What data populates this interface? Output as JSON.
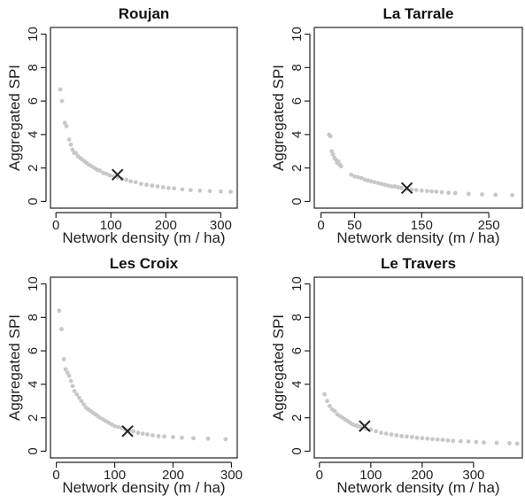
{
  "chart_data": [
    {
      "type": "scatter",
      "title": "Roujan",
      "xlabel": "Network density (m / ha)",
      "ylabel": "Aggregated SPI",
      "xlim": [
        -10,
        330
      ],
      "ylim": [
        -0.4,
        10.4
      ],
      "x_ticks": [
        0,
        100,
        200,
        300
      ],
      "y_ticks": [
        0,
        2,
        4,
        6,
        8,
        10
      ],
      "series": [
        {
          "x": [
            8,
            11,
            16,
            19,
            24,
            27,
            30,
            33,
            36,
            40,
            44,
            48,
            52,
            56,
            60,
            65,
            70,
            75,
            80,
            86,
            92,
            98,
            105,
            112,
            120,
            128,
            136,
            145,
            155,
            165,
            175,
            185,
            195,
            205,
            215,
            230,
            245,
            262,
            280,
            300,
            318
          ],
          "y": [
            6.7,
            6.0,
            4.7,
            4.5,
            3.7,
            3.4,
            3.1,
            2.9,
            2.9,
            2.7,
            2.6,
            2.5,
            2.4,
            2.3,
            2.2,
            2.1,
            2.0,
            1.9,
            1.85,
            1.7,
            1.65,
            1.55,
            1.5,
            1.45,
            1.35,
            1.3,
            1.2,
            1.15,
            1.05,
            1.0,
            0.95,
            0.9,
            0.85,
            0.8,
            0.78,
            0.72,
            0.68,
            0.65,
            0.62,
            0.6,
            0.58
          ]
        }
      ],
      "highlight": {
        "x": 112,
        "y": 1.6,
        "marker": "x"
      }
    },
    {
      "type": "scatter",
      "title": "La Tarrale",
      "xlabel": "Network density (m / ha)",
      "ylabel": "Aggregated SPI",
      "xlim": [
        -10,
        300
      ],
      "ylim": [
        -0.4,
        10.4
      ],
      "x_ticks": [
        0,
        50,
        150,
        250
      ],
      "y_ticks": [
        0,
        2,
        4,
        6,
        8,
        10
      ],
      "series": [
        {
          "x": [
            12,
            14,
            16,
            18,
            20,
            22,
            24,
            26,
            28,
            30,
            45,
            50,
            55,
            60,
            65,
            70,
            75,
            80,
            85,
            90,
            95,
            100,
            105,
            110,
            115,
            120,
            128,
            135,
            142,
            150,
            158,
            165,
            172,
            180,
            190,
            200,
            220,
            240,
            260,
            285
          ],
          "y": [
            4.0,
            3.9,
            3.0,
            2.8,
            2.6,
            2.5,
            2.3,
            2.4,
            2.2,
            2.1,
            1.6,
            1.5,
            1.45,
            1.4,
            1.3,
            1.25,
            1.2,
            1.15,
            1.1,
            1.05,
            1.0,
            0.95,
            0.9,
            0.9,
            0.85,
            0.8,
            0.75,
            0.7,
            0.68,
            0.65,
            0.62,
            0.6,
            0.58,
            0.55,
            0.52,
            0.5,
            0.45,
            0.42,
            0.4,
            0.38
          ]
        }
      ],
      "highlight": {
        "x": 128,
        "y": 0.8,
        "marker": "x"
      }
    },
    {
      "type": "scatter",
      "title": "Les Croix",
      "xlabel": "Network density (m / ha)",
      "ylabel": "Aggregated SPI",
      "xlim": [
        -10,
        310
      ],
      "ylim": [
        -0.4,
        10.4
      ],
      "x_ticks": [
        0,
        100,
        200,
        300
      ],
      "y_ticks": [
        0,
        2,
        4,
        6,
        8,
        10
      ],
      "series": [
        {
          "x": [
            5,
            9,
            13,
            16,
            19,
            22,
            25,
            28,
            31,
            35,
            39,
            43,
            47,
            51,
            55,
            59,
            63,
            67,
            71,
            75,
            80,
            85,
            90,
            95,
            100,
            106,
            112,
            118,
            125,
            132,
            140,
            148,
            156,
            165,
            175,
            185,
            200,
            215,
            235,
            260,
            290
          ],
          "y": [
            8.4,
            7.3,
            5.5,
            4.9,
            4.7,
            4.5,
            4.2,
            3.9,
            3.6,
            3.4,
            3.2,
            3.0,
            2.8,
            2.6,
            2.5,
            2.4,
            2.3,
            2.2,
            2.1,
            2.0,
            1.9,
            1.8,
            1.7,
            1.6,
            1.5,
            1.45,
            1.4,
            1.3,
            1.25,
            1.2,
            1.1,
            1.05,
            1.0,
            0.95,
            0.9,
            0.88,
            0.85,
            0.8,
            0.78,
            0.75,
            0.72
          ]
        }
      ],
      "highlight": {
        "x": 122,
        "y": 1.2,
        "marker": "x"
      }
    },
    {
      "type": "scatter",
      "title": "Le Travers",
      "xlabel": "Network density (m / ha)",
      "ylabel": "Aggregated SPI",
      "xlim": [
        -10,
        395
      ],
      "ylim": [
        -0.4,
        10.4
      ],
      "x_ticks": [
        0,
        100,
        200,
        300
      ],
      "y_ticks": [
        0,
        2,
        4,
        6,
        8,
        10
      ],
      "series": [
        {
          "x": [
            10,
            15,
            20,
            25,
            30,
            35,
            40,
            45,
            50,
            55,
            60,
            65,
            70,
            75,
            80,
            90,
            100,
            110,
            120,
            130,
            140,
            150,
            160,
            170,
            180,
            190,
            200,
            210,
            220,
            230,
            240,
            250,
            260,
            275,
            290,
            305,
            320,
            345,
            370,
            385
          ],
          "y": [
            3.4,
            3.0,
            2.7,
            2.5,
            2.4,
            2.2,
            2.1,
            2.0,
            1.9,
            1.8,
            1.7,
            1.6,
            1.55,
            1.5,
            1.45,
            1.35,
            1.3,
            1.2,
            1.1,
            1.05,
            1.0,
            0.95,
            0.9,
            0.88,
            0.85,
            0.8,
            0.78,
            0.75,
            0.72,
            0.7,
            0.68,
            0.65,
            0.62,
            0.6,
            0.58,
            0.55,
            0.52,
            0.5,
            0.48,
            0.45
          ]
        }
      ],
      "highlight": {
        "x": 88,
        "y": 1.5,
        "marker": "x"
      }
    }
  ],
  "colors": {
    "points": "#c8c8c8",
    "marker": "#222222",
    "axes": "#222222"
  }
}
